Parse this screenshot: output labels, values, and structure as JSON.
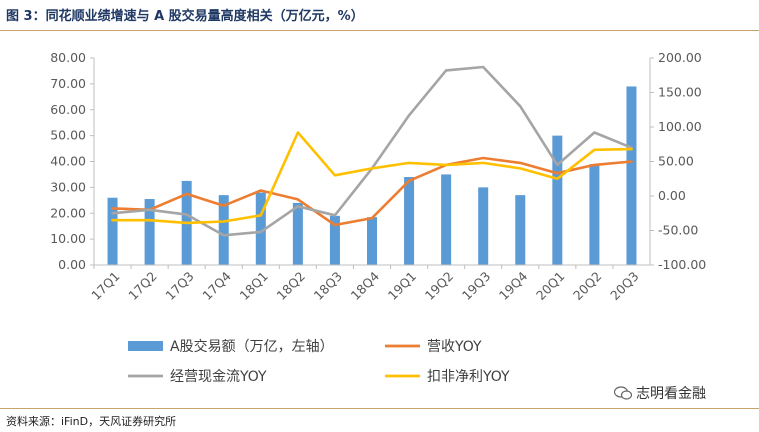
{
  "header": {
    "title": "图 3：同花顺业绩增速与 A 股交易量高度相关（万亿元，%）"
  },
  "footer": {
    "source": "资料来源：iFinD，天风证券研究所",
    "watermark": "志明看金融"
  },
  "colors": {
    "bar": "#5b9bd5",
    "revenue": "#ed7d31",
    "cashflow": "#a5a5a5",
    "profit": "#ffc000",
    "rule": "#c9a36b",
    "title": "#1f3864"
  },
  "chart_data": {
    "type": "bar+line",
    "categories": [
      "17Q1",
      "17Q2",
      "17Q3",
      "17Q4",
      "18Q1",
      "18Q2",
      "18Q3",
      "18Q4",
      "19Q1",
      "19Q2",
      "19Q3",
      "19Q4",
      "20Q1",
      "20Q2",
      "20Q3"
    ],
    "left_axis": {
      "min": 0,
      "max": 80,
      "step": 10,
      "tick_labels": [
        "0.00",
        "10.00",
        "20.00",
        "30.00",
        "40.00",
        "50.00",
        "60.00",
        "70.00",
        "80.00"
      ]
    },
    "right_axis": {
      "min": -100,
      "max": 200,
      "step": 50,
      "tick_labels": [
        "-100.00",
        "-50.00",
        "0.00",
        "50.00",
        "100.00",
        "150.00",
        "200.00"
      ]
    },
    "series": [
      {
        "name": "A股交易额（万亿，左轴）",
        "kind": "bar",
        "axis": "left",
        "color": "#5b9bd5",
        "values": [
          26,
          25.5,
          32.5,
          27,
          28,
          24,
          19,
          18.5,
          34,
          35,
          30,
          27,
          50,
          39,
          69
        ]
      },
      {
        "name": "营收YOY",
        "kind": "line",
        "axis": "right",
        "color": "#ed7d31",
        "values": [
          -18,
          -20,
          3,
          -14,
          8,
          -5,
          -42,
          -32,
          22,
          45,
          55,
          48,
          33,
          45,
          50
        ]
      },
      {
        "name": "经营现金流YOY",
        "kind": "line",
        "axis": "right",
        "color": "#a5a5a5",
        "values": [
          -25,
          -20,
          -27,
          -57,
          -52,
          -15,
          -28,
          40,
          117,
          182,
          187,
          130,
          45,
          92,
          70
        ]
      },
      {
        "name": "扣非净利YOY",
        "kind": "line",
        "axis": "right",
        "color": "#ffc000",
        "values": [
          -35,
          -35,
          -39,
          -37,
          -28,
          92,
          30,
          40,
          48,
          45,
          48,
          40,
          25,
          67,
          68
        ]
      }
    ],
    "grid": false,
    "legend_position": "bottom"
  }
}
